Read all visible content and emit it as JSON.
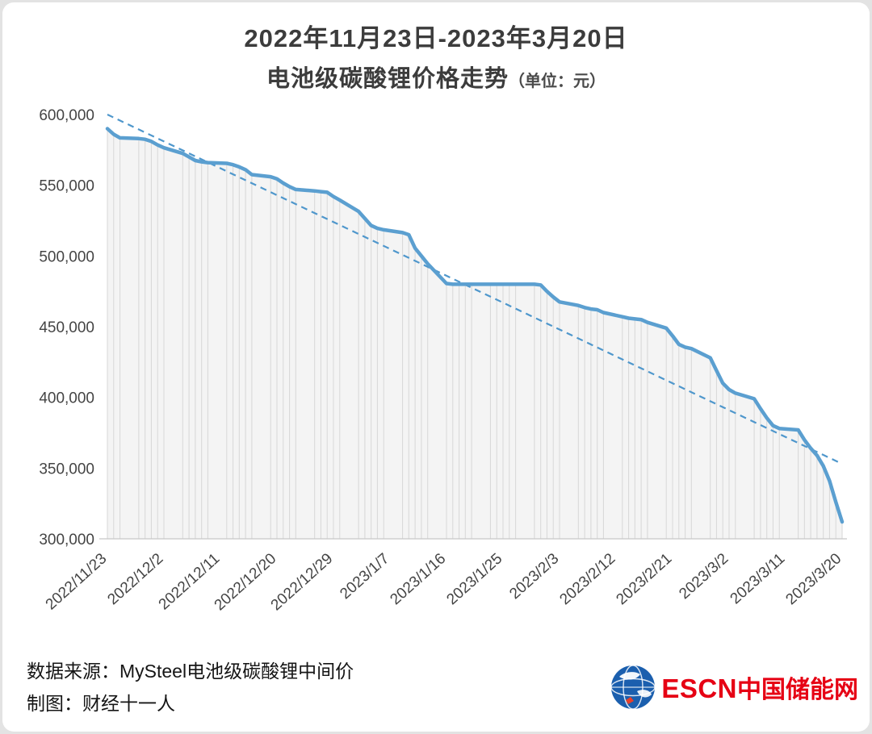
{
  "header": {
    "title_line1": "2022年11月23日-2023年3月20日",
    "title_line2": "电池级碳酸锂价格走势",
    "unit_label": "（单位：元）"
  },
  "footer": {
    "source": "数据来源：MySteel电池级碳酸锂中间价",
    "credit": "制图：财经十一人",
    "logo_en": "ESCN",
    "logo_cn": "中国储能网"
  },
  "colors": {
    "line": "#5b9fd0",
    "trend": "#4f97cc",
    "area": "#f4f4f4",
    "droplines": "#d7d7d7",
    "axis": "#c8c8c8",
    "accent_red": "#e60114",
    "globe_blue": "#1b5fae"
  },
  "chart_data": {
    "type": "line",
    "title": "2022年11月23日-2023年3月20日",
    "subtitle": "电池级碳酸锂价格走势",
    "unit": "元",
    "ylabel": "",
    "xlabel": "",
    "ylim": [
      300000,
      600000
    ],
    "y_ticks": [
      300000,
      350000,
      400000,
      450000,
      500000,
      550000,
      600000
    ],
    "x_tick_interval_days": 9,
    "x_range_days": 117,
    "x_tick_labels": [
      "2022/11/23",
      "2022/12/2",
      "2022/12/11",
      "2022/12/20",
      "2022/12/29",
      "2023/1/7",
      "2023/1/16",
      "2023/1/25",
      "2023/2/3",
      "2023/2/12",
      "2023/2/21",
      "2023/3/2",
      "2023/3/11",
      "2023/3/20"
    ],
    "grid": "vertical-drop-lines-per-point",
    "legend": "none",
    "trend_line": {
      "style": "dashed",
      "from": [
        0,
        600000
      ],
      "to": [
        117,
        353000
      ]
    },
    "series": [
      {
        "name": "电池级碳酸锂中间价",
        "points": [
          [
            0,
            590000
          ],
          [
            1,
            586000
          ],
          [
            2,
            583500
          ],
          [
            5,
            583000
          ],
          [
            6,
            582500
          ],
          [
            7,
            581000
          ],
          [
            8,
            578500
          ],
          [
            9,
            576500
          ],
          [
            12,
            572500
          ],
          [
            13,
            570000
          ],
          [
            14,
            567500
          ],
          [
            15,
            566500
          ],
          [
            16,
            566000
          ],
          [
            19,
            565500
          ],
          [
            20,
            564500
          ],
          [
            21,
            563000
          ],
          [
            22,
            561000
          ],
          [
            23,
            557500
          ],
          [
            26,
            556000
          ],
          [
            27,
            554500
          ],
          [
            28,
            551500
          ],
          [
            29,
            549000
          ],
          [
            30,
            547000
          ],
          [
            33,
            546000
          ],
          [
            34,
            545500
          ],
          [
            35,
            545000
          ],
          [
            36,
            542000
          ],
          [
            37,
            539500
          ],
          [
            40,
            531500
          ],
          [
            41,
            526500
          ],
          [
            42,
            521500
          ],
          [
            43,
            519500
          ],
          [
            44,
            518500
          ],
          [
            47,
            516500
          ],
          [
            48,
            515000
          ],
          [
            49,
            505500
          ],
          [
            50,
            500000
          ],
          [
            51,
            494500
          ],
          [
            54,
            480500
          ],
          [
            55,
            480000
          ],
          [
            56,
            480000
          ],
          [
            57,
            480000
          ],
          [
            58,
            480000
          ],
          [
            61,
            480000
          ],
          [
            62,
            480000
          ],
          [
            63,
            480000
          ],
          [
            64,
            480000
          ],
          [
            65,
            480000
          ],
          [
            68,
            480000
          ],
          [
            69,
            479500
          ],
          [
            70,
            475000
          ],
          [
            71,
            471000
          ],
          [
            72,
            467500
          ],
          [
            75,
            465000
          ],
          [
            76,
            463500
          ],
          [
            77,
            462500
          ],
          [
            78,
            462000
          ],
          [
            79,
            460000
          ],
          [
            82,
            457000
          ],
          [
            83,
            456000
          ],
          [
            84,
            455500
          ],
          [
            85,
            455000
          ],
          [
            86,
            453000
          ],
          [
            89,
            449000
          ],
          [
            90,
            443500
          ],
          [
            91,
            437500
          ],
          [
            92,
            435500
          ],
          [
            93,
            434500
          ],
          [
            96,
            428000
          ],
          [
            97,
            419000
          ],
          [
            98,
            410000
          ],
          [
            99,
            405500
          ],
          [
            100,
            403000
          ],
          [
            103,
            399000
          ],
          [
            104,
            392000
          ],
          [
            105,
            385500
          ],
          [
            106,
            380000
          ],
          [
            107,
            378000
          ],
          [
            110,
            377000
          ],
          [
            111,
            370000
          ],
          [
            112,
            364000
          ],
          [
            113,
            359000
          ],
          [
            114,
            351500
          ],
          [
            115,
            341000
          ],
          [
            116,
            326000
          ],
          [
            117,
            312000
          ]
        ]
      }
    ]
  }
}
